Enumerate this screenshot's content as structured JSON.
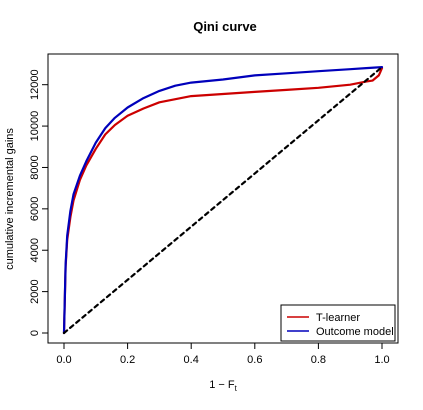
{
  "chart_data": {
    "type": "line",
    "title": "Qini curve",
    "xlabel": "1 − F",
    "xlabel_subscript": "t",
    "ylabel": "cumulative incremental gains",
    "xlim": [
      0,
      1
    ],
    "ylim": [
      0,
      13000
    ],
    "x_ticks": [
      0.0,
      0.2,
      0.4,
      0.6,
      0.8,
      1.0
    ],
    "x_tick_labels": [
      "0.0",
      "0.2",
      "0.4",
      "0.6",
      "0.8",
      "1.0"
    ],
    "y_ticks": [
      0,
      2000,
      4000,
      6000,
      8000,
      10000,
      12000
    ],
    "y_tick_labels": [
      "0",
      "2000",
      "4000",
      "6000",
      "8000",
      "10000",
      "12000"
    ],
    "grid": false,
    "legend_position": "bottom-right",
    "series": [
      {
        "name": "T-learner",
        "color": "#cc0000",
        "style": "solid",
        "points": [
          [
            0,
            0
          ],
          [
            0.005,
            3200
          ],
          [
            0.01,
            4500
          ],
          [
            0.02,
            5600
          ],
          [
            0.03,
            6400
          ],
          [
            0.05,
            7400
          ],
          [
            0.07,
            8100
          ],
          [
            0.1,
            8900
          ],
          [
            0.13,
            9600
          ],
          [
            0.16,
            10050
          ],
          [
            0.2,
            10500
          ],
          [
            0.25,
            10850
          ],
          [
            0.3,
            11150
          ],
          [
            0.35,
            11300
          ],
          [
            0.4,
            11450
          ],
          [
            0.5,
            11550
          ],
          [
            0.6,
            11650
          ],
          [
            0.7,
            11750
          ],
          [
            0.8,
            11850
          ],
          [
            0.9,
            12000
          ],
          [
            0.95,
            12150
          ],
          [
            0.97,
            12200
          ],
          [
            0.99,
            12450
          ],
          [
            1.0,
            12800
          ]
        ]
      },
      {
        "name": "Outcome model",
        "color": "#0000bb",
        "style": "solid",
        "points": [
          [
            0,
            0
          ],
          [
            0.005,
            3300
          ],
          [
            0.01,
            4700
          ],
          [
            0.02,
            5900
          ],
          [
            0.03,
            6700
          ],
          [
            0.05,
            7600
          ],
          [
            0.07,
            8300
          ],
          [
            0.1,
            9200
          ],
          [
            0.13,
            9900
          ],
          [
            0.16,
            10400
          ],
          [
            0.2,
            10900
          ],
          [
            0.25,
            11350
          ],
          [
            0.3,
            11700
          ],
          [
            0.35,
            11950
          ],
          [
            0.4,
            12100
          ],
          [
            0.5,
            12250
          ],
          [
            0.6,
            12450
          ],
          [
            0.7,
            12550
          ],
          [
            0.8,
            12650
          ],
          [
            0.9,
            12750
          ],
          [
            0.95,
            12800
          ],
          [
            1.0,
            12850
          ]
        ]
      },
      {
        "name": "",
        "color": "#000000",
        "style": "dashed",
        "points": [
          [
            0,
            0
          ],
          [
            1.0,
            12850
          ]
        ]
      }
    ]
  }
}
